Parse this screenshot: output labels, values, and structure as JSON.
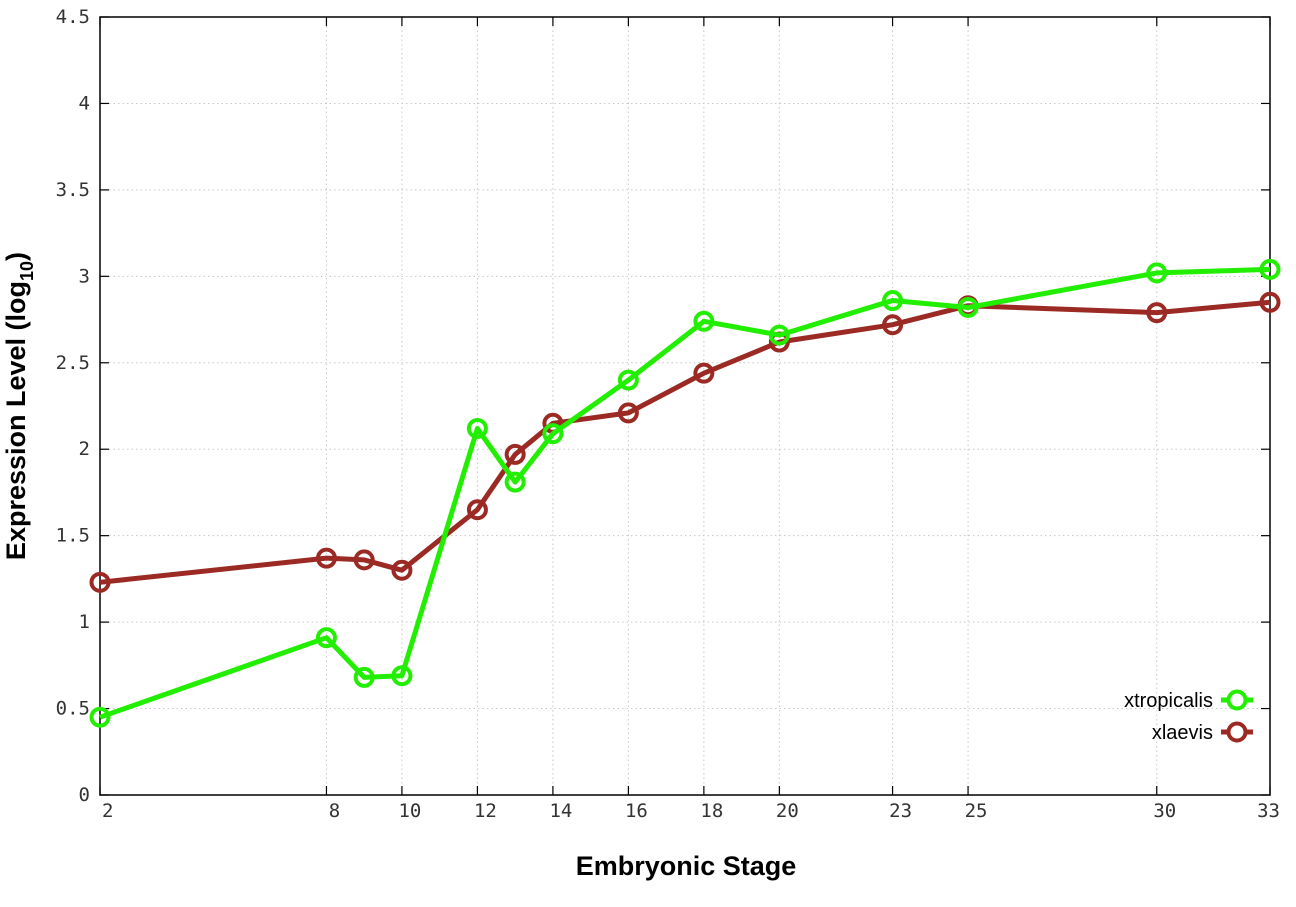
{
  "chart_data": {
    "type": "line",
    "xlabel": "Embryonic Stage",
    "ylabel_main": "Expression Level (log",
    "ylabel_sub": "10",
    "ylabel_close": ")",
    "x_ticks": [
      "2",
      "8",
      "10",
      "12",
      "14",
      "16",
      "18",
      "20",
      "23",
      "25",
      "30",
      "33"
    ],
    "x_stages": [
      "2",
      "8",
      "9",
      "10",
      "12",
      "13",
      "14",
      "16",
      "18",
      "20",
      "23",
      "25",
      "30",
      "33"
    ],
    "y_ticks": [
      "0",
      "0.5",
      "1",
      "1.5",
      "2",
      "2.5",
      "3",
      "3.5",
      "4",
      "4.5"
    ],
    "ylim": [
      0,
      4.5
    ],
    "grid": true,
    "legend_position": "bottom-right",
    "series": [
      {
        "name": "xtropicalis",
        "color": "#22ee00",
        "values": [
          0.45,
          0.91,
          0.68,
          0.69,
          2.12,
          1.81,
          2.09,
          2.4,
          2.74,
          2.66,
          2.86,
          2.82,
          3.02,
          3.04
        ]
      },
      {
        "name": "xlaevis",
        "color": "#9b2a24",
        "values": [
          1.23,
          1.37,
          1.36,
          1.3,
          1.65,
          1.97,
          2.15,
          2.21,
          2.44,
          2.62,
          2.72,
          2.83,
          2.79,
          2.85
        ]
      }
    ]
  }
}
